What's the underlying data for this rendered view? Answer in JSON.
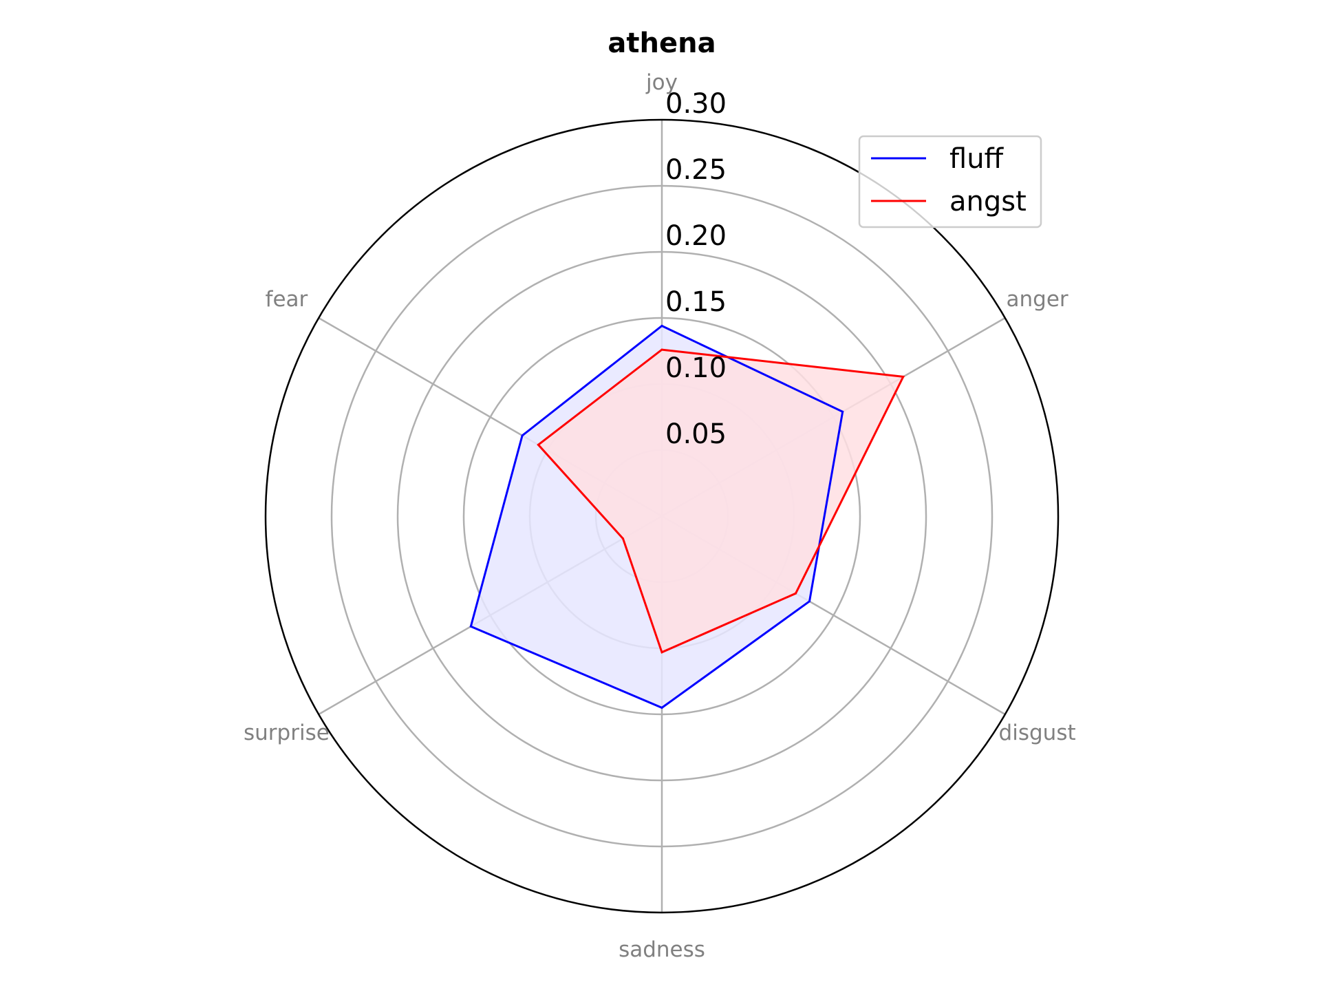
{
  "chart_data": {
    "type": "radar",
    "title": "athena",
    "categories": [
      "joy",
      "anger",
      "disgust",
      "sadness",
      "surprise",
      "fear"
    ],
    "radial_ticks": [
      "0.05",
      "0.10",
      "0.15",
      "0.20",
      "0.25",
      "0.30"
    ],
    "radial_tick_values": [
      0.05,
      0.1,
      0.15,
      0.2,
      0.25,
      0.3
    ],
    "rlim": [
      0,
      0.3
    ],
    "grid": true,
    "legend_position": "top-right",
    "series": [
      {
        "name": "fluff",
        "color": "#0000ff",
        "fill": "#e6e6ff",
        "values": [
          0.144,
          0.158,
          0.129,
          0.145,
          0.167,
          0.122
        ]
      },
      {
        "name": "angst",
        "color": "#ff0000",
        "fill": "#ffdfe3",
        "values": [
          0.126,
          0.211,
          0.117,
          0.103,
          0.034,
          0.108
        ]
      }
    ]
  }
}
